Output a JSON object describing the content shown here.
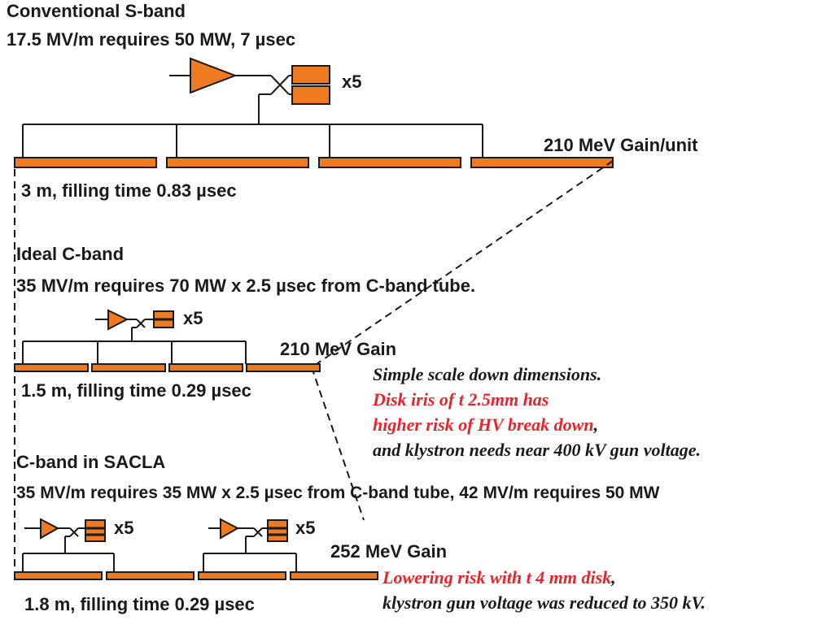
{
  "colors": {
    "accent": "#ee7a22",
    "line": "#1a1a1a",
    "warning_text": "#e8232a",
    "note_text": "#1a1a1a"
  },
  "s_band": {
    "title": "Conventional S-band",
    "spec": "17.5 MV/m requires 50 MW, 7 µsec",
    "multiplier": "x5",
    "gain": "210 MeV Gain/unit",
    "structure": "3 m, filling time 0.83 µsec"
  },
  "ideal_c_band": {
    "title": "Ideal C-band",
    "spec": "35 MV/m requires 70 MW x 2.5 µsec from C-band tube.",
    "multiplier": "x5",
    "gain": "210 MeV Gain",
    "structure": "1.5 m, filling time 0.29 µsec",
    "notes": {
      "line1": "Simple scale down dimensions.",
      "line2": "Disk iris of t 2.5mm has",
      "line3_red": "higher risk of HV break down",
      "line3_tail": ",",
      "line4": "and klystron needs near 400 kV gun voltage."
    }
  },
  "sacla_c_band": {
    "title": "C-band in SACLA",
    "spec": "35 MV/m requires 35 MW x 2.5 µsec from C-band tube, 42 MV/m requires 50 MW",
    "multiplier_left": "x5",
    "multiplier_right": "x5",
    "gain": "252 MeV Gain",
    "structure": "1.8 m, filling time 0.29 µsec",
    "notes": {
      "line1_red": "Lowering risk with t 4 mm disk",
      "line1_tail": ",",
      "line2": "klystron gun voltage was reduced to 350 kV."
    }
  }
}
